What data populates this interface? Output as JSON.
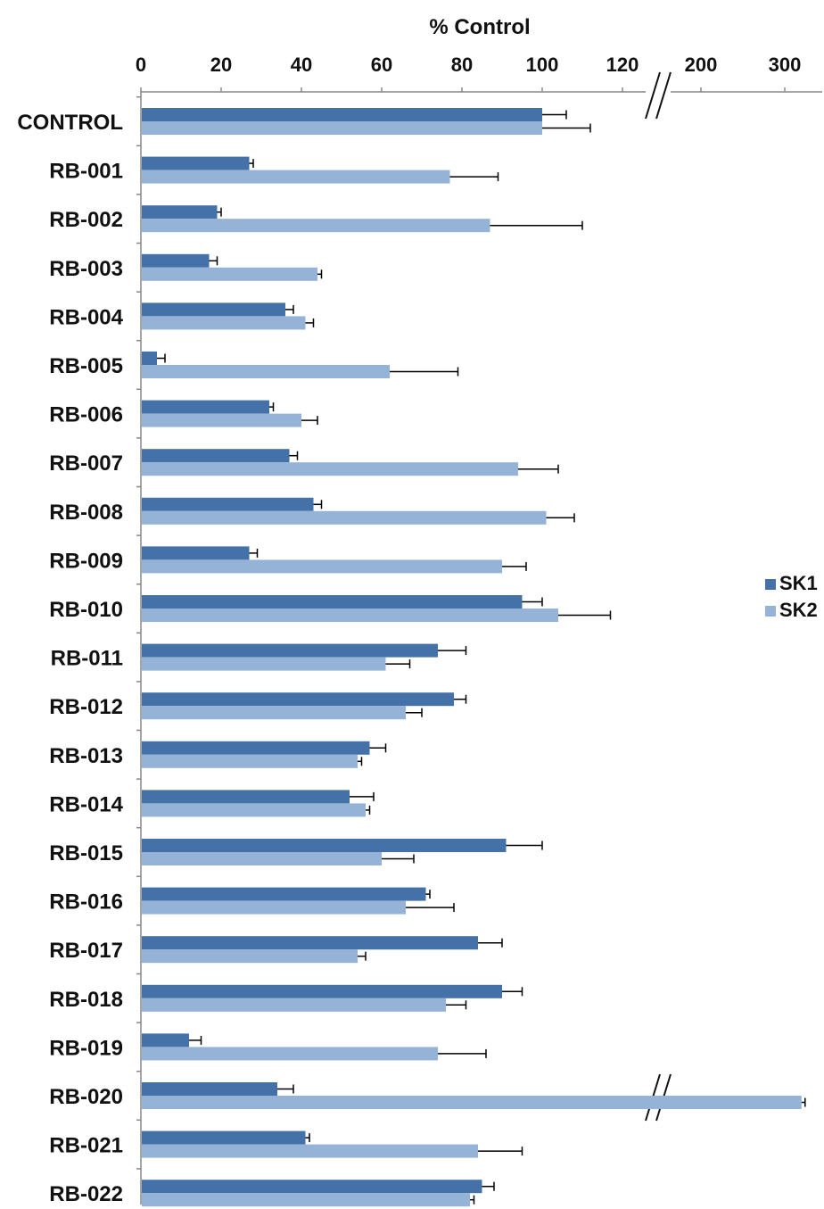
{
  "chart_data": {
    "type": "bar",
    "orientation": "horizontal",
    "title": "% Control",
    "xlabel": "% Control",
    "ylabel": "",
    "axis_position": "top",
    "broken_axis": true,
    "x_ticks_lower": [
      "0",
      "20",
      "40",
      "60",
      "80",
      "100",
      "120"
    ],
    "x_ticks_upper": [
      "200",
      "300"
    ],
    "xlim_lower": [
      0,
      128
    ],
    "xlim_upper": [
      128,
      330
    ],
    "grid": false,
    "legend_position": "right",
    "categories": [
      "CONTROL",
      "RB-001",
      "RB-002",
      "RB-003",
      "RB-004",
      "RB-005",
      "RB-006",
      "RB-007",
      "RB-008",
      "RB-009",
      "RB-010",
      "RB-011",
      "RB-012",
      "RB-013",
      "RB-014",
      "RB-015",
      "RB-016",
      "RB-017",
      "RB-018",
      "RB-019",
      "RB-020",
      "RB-021",
      "RB-022"
    ],
    "series": [
      {
        "name": "SK1",
        "color": "#4472a8",
        "values": [
          100,
          27,
          19,
          17,
          36,
          4,
          32,
          37,
          43,
          27,
          95,
          74,
          78,
          57,
          52,
          91,
          71,
          84,
          90,
          12,
          34,
          41,
          85
        ],
        "errors": [
          6,
          1,
          1,
          2,
          2,
          2,
          1,
          2,
          2,
          2,
          5,
          7,
          3,
          4,
          6,
          9,
          1,
          6,
          5,
          3,
          4,
          1,
          3
        ]
      },
      {
        "name": "SK2",
        "color": "#95b3d7",
        "values": [
          100,
          77,
          87,
          44,
          41,
          62,
          40,
          94,
          101,
          90,
          104,
          61,
          66,
          54,
          56,
          60,
          66,
          54,
          76,
          74,
          320,
          84,
          82
        ],
        "errors": [
          12,
          12,
          23,
          1,
          2,
          17,
          4,
          10,
          7,
          6,
          13,
          6,
          4,
          1,
          1,
          8,
          12,
          2,
          5,
          12,
          1,
          11,
          1
        ]
      }
    ]
  }
}
